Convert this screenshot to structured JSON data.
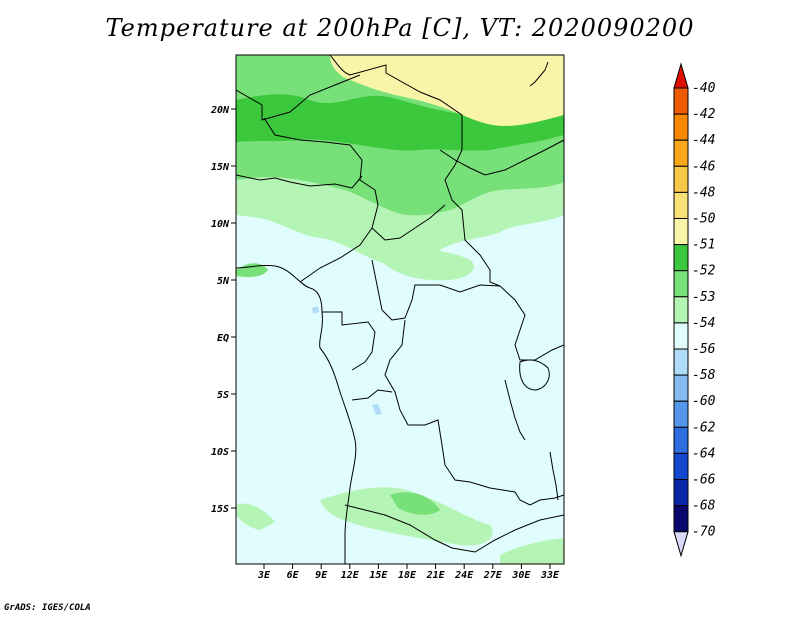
{
  "title": "Temperature at 200hPa [C], VT: 2020090200",
  "footer": "GrADS: IGES/COLA",
  "map": {
    "lat_labels": [
      "20N",
      "15N",
      "10N",
      "5N",
      "EQ",
      "5S",
      "10S",
      "15S"
    ],
    "lon_labels": [
      "3E",
      "6E",
      "9E",
      "12E",
      "15E",
      "18E",
      "21E",
      "24E",
      "27E",
      "30E",
      "33E"
    ]
  },
  "colorbar": {
    "levels": [
      "-40",
      "-42",
      "-44",
      "-46",
      "-48",
      "-50",
      "-51",
      "-52",
      "-53",
      "-54",
      "-56",
      "-58",
      "-60",
      "-62",
      "-64",
      "-66",
      "-68",
      "-70"
    ],
    "colors": [
      "#e02000",
      "#f05a00",
      "#f88800",
      "#f8a818",
      "#f8c848",
      "#f8e078",
      "#f8f4a8",
      "#3cc83c",
      "#78e078",
      "#b4f4b4",
      "#e0fcfc",
      "#b0dcf8",
      "#84bcf0",
      "#5496e8",
      "#2e6ee0",
      "#1448d0",
      "#0828a8",
      "#08086c"
    ],
    "top_arrow_color": "#e01000",
    "bottom_arrow_color": "#d8d8f8"
  },
  "field_colors": {
    "n50": "#f8f4a8",
    "n51": "#3cc83c",
    "n52": "#78e078",
    "n53": "#b4f4b4",
    "n54": "#e0fcfc",
    "n56": "#b0dcf8"
  }
}
